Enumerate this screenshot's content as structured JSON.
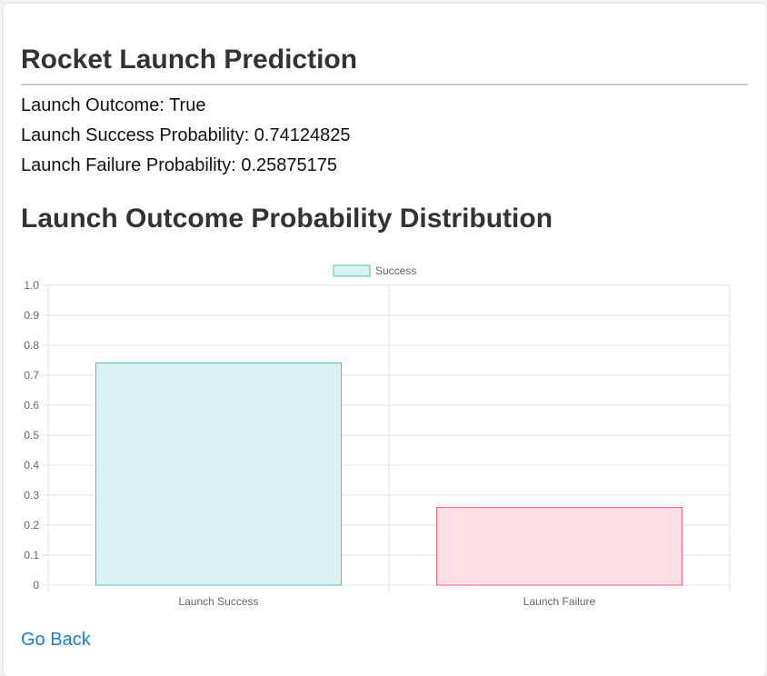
{
  "page": {
    "title": "Rocket Launch Prediction",
    "outcome_line": "Launch Outcome: True",
    "success_line": "Launch Success Probability: 0.74124825",
    "failure_line": "Launch Failure Probability: 0.25875175",
    "section_title": "Launch Outcome Probability Distribution",
    "go_back_label": "Go Back"
  },
  "colors": {
    "success_fill": "#d9f1f1",
    "success_stroke": "#4bc0c0",
    "failure_fill": "#ffdfe5",
    "failure_stroke": "#ff6384",
    "grid": "#e2e2e2",
    "link": "#1a7fd4"
  },
  "chart_data": {
    "type": "bar",
    "categories": [
      "Launch Success",
      "Launch Failure"
    ],
    "series": [
      {
        "name": "Success",
        "values": [
          0.74124825,
          0.25875175
        ]
      }
    ],
    "ylim": [
      0,
      1.0
    ],
    "yticks": [
      "0",
      "0.1",
      "0.2",
      "0.3",
      "0.4",
      "0.5",
      "0.6",
      "0.7",
      "0.8",
      "0.9",
      "1.0"
    ],
    "legend": "top-center",
    "grid": true
  }
}
